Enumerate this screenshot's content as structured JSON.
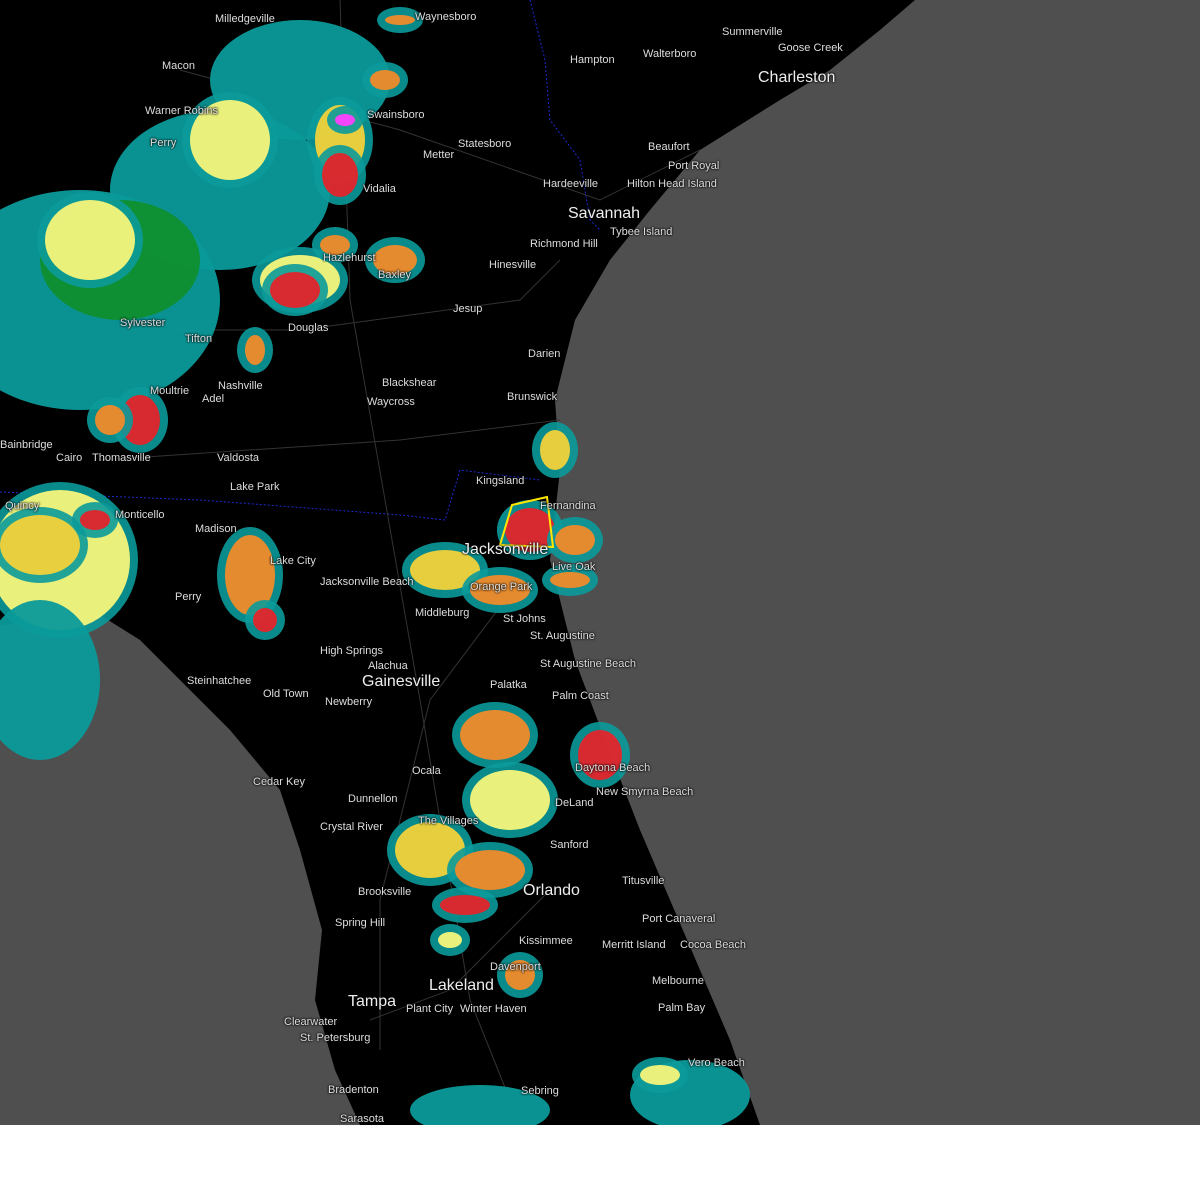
{
  "map": {
    "type": "weather-radar",
    "colors": {
      "ocean": "#4f4f4f",
      "land": "#000000",
      "warning_outline": "#ffe600",
      "state_line": "#1a2bd1"
    },
    "radar_palette": [
      "#0b9a9a",
      "#14b38f",
      "#0f8f2f",
      "#f5f57a",
      "#f2d23a",
      "#f08a2a",
      "#e3252b",
      "#ff40ff"
    ],
    "cities": [
      "Milledgeville",
      "Waynesboro",
      "Macon",
      "Summerville",
      "Goose Creek",
      "Charleston",
      "Hampton",
      "Walterboro",
      "Warner Robins",
      "Perry",
      "Swainsboro",
      "Statesboro",
      "Metter",
      "Beaufort",
      "Port Royal",
      "Hardeeville",
      "Hilton Head Island",
      "Vidalia",
      "Savannah",
      "Tybee Island",
      "Richmond Hill",
      "Hazlehurst",
      "Baxley",
      "Hinesville",
      "Jesup",
      "Douglas",
      "Sylvester",
      "Tifton",
      "Darien",
      "Nashville",
      "Blackshear",
      "Waycross",
      "Brunswick",
      "Adel",
      "Moultrie",
      "Bainbridge",
      "Cairo",
      "Thomasville",
      "Valdosta",
      "Lake Park",
      "Kingsland",
      "Quincy",
      "Monticello",
      "Madison",
      "Fernandina",
      "Jacksonville",
      "Live Oak",
      "Lake City",
      "Jacksonville Beach",
      "Perry",
      "Orange Park",
      "Middleburg",
      "St Johns",
      "St. Augustine",
      "High Springs",
      "Alachua",
      "St Augustine Beach",
      "Gainesville",
      "Steinhatchee",
      "Old Town",
      "Newberry",
      "Palatka",
      "Palm Coast",
      "Daytona Beach",
      "Ocala",
      "Cedar Key",
      "Dunnellon",
      "New Smyrna Beach",
      "DeLand",
      "Crystal River",
      "The Villages",
      "Sanford",
      "Titusville",
      "Brooksville",
      "Orlando",
      "Port Canaveral",
      "Spring Hill",
      "Kissimmee",
      "Merritt Island",
      "Cocoa Beach",
      "Davenport",
      "Melbourne",
      "Lakeland",
      "Tampa",
      "Palm Bay",
      "Clearwater",
      "Plant City",
      "Winter Haven",
      "St. Petersburg",
      "Vero Beach",
      "Bradenton",
      "Sebring",
      "Sarasota"
    ]
  }
}
